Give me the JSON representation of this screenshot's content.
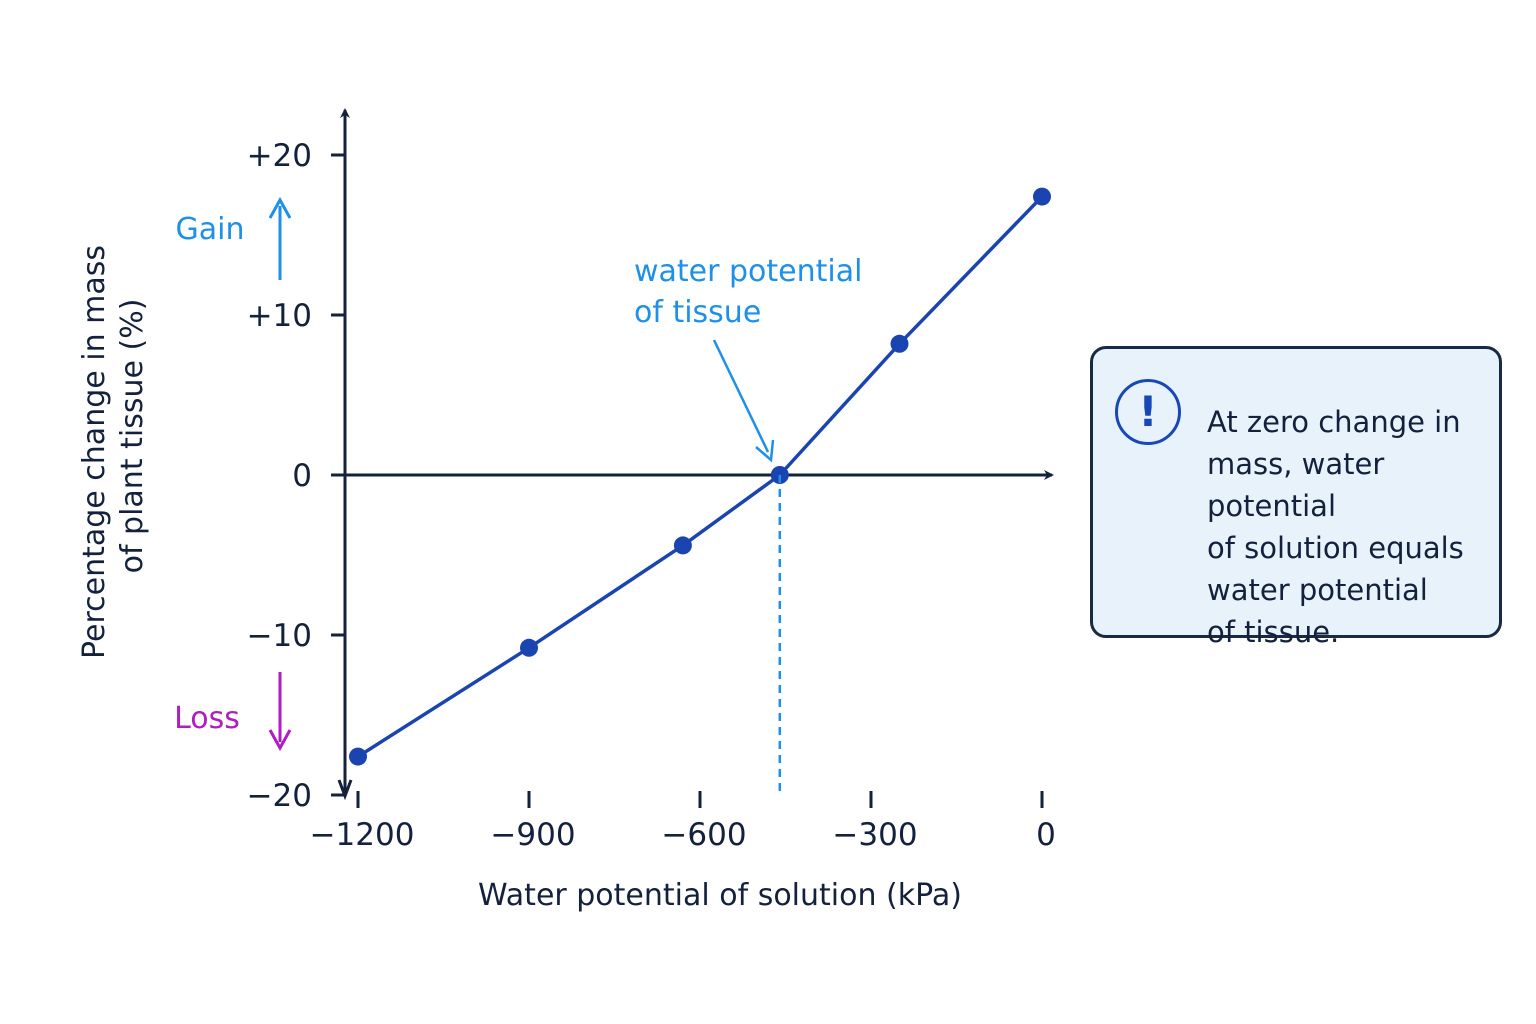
{
  "chart_data": {
    "type": "line",
    "xlabel": "Water potential of solution (kPa)",
    "ylabel_line1": "Percentage change in mass",
    "ylabel_line2": "of plant tissue (%)",
    "xlim": [
      -1200,
      0
    ],
    "ylim": [
      -20,
      20
    ],
    "x_ticks": [
      -1200,
      -900,
      -600,
      -300,
      0
    ],
    "x_tick_labels": [
      "−1200",
      "−900",
      "−600",
      "−300",
      "0"
    ],
    "y_ticks": [
      20,
      10,
      0,
      -10,
      -20
    ],
    "y_tick_labels": [
      "+20",
      "+10",
      "0",
      "−10",
      "−20"
    ],
    "series": [
      {
        "x": [
          -1200,
          -900,
          -630,
          -460,
          -250,
          0
        ],
        "y": [
          -17.6,
          -10.8,
          -4.4,
          0,
          8.2,
          17.4
        ]
      }
    ],
    "intercept_x": -460,
    "annotation_line1": "water potential",
    "annotation_line2": "of tissue",
    "gain_label": "Gain",
    "loss_label": "Loss",
    "grid": false,
    "colors": {
      "line": "#1a44b0",
      "axis": "#14213d",
      "annotation": "#1e90e8",
      "gain": "#1e90e8",
      "loss": "#b01cc2",
      "box_fill": "#e8f2fb"
    }
  },
  "note": {
    "icon": "exclamation-icon",
    "text": "At zero change in\nmass, water potential\nof solution equals\nwater potential\nof tissue."
  }
}
